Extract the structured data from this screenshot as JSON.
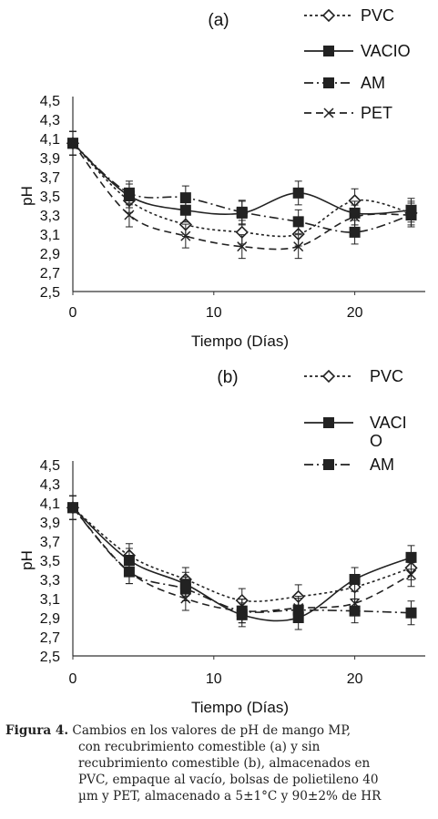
{
  "chart_data": [
    {
      "type": "line",
      "title": "(a)",
      "xlabel": "Tiempo (Días)",
      "ylabel": "pH",
      "xlim": [
        0,
        25
      ],
      "ylim": [
        2.5,
        4.5
      ],
      "xticks": [
        "0",
        "10",
        "20"
      ],
      "yticks": [
        "4,5",
        "4,3",
        "4,1",
        "3,9",
        "3,7",
        "3,5",
        "3,3",
        "3,1",
        "2,9",
        "2,7",
        "2,5"
      ],
      "x": [
        0,
        4,
        8,
        12,
        16,
        20,
        24
      ],
      "legend_position": "right",
      "grid": false,
      "series": [
        {
          "name": "PVC",
          "marker": "diamond",
          "dash": "3,3",
          "values": [
            4.05,
            3.45,
            3.2,
            3.12,
            3.1,
            3.45,
            3.32
          ]
        },
        {
          "name": "VACIO",
          "marker": "square",
          "dash": "",
          "values": [
            4.05,
            3.5,
            3.35,
            3.32,
            3.53,
            3.32,
            3.35
          ]
        },
        {
          "name": "AM",
          "marker": "square",
          "dash": "10,4,2,4",
          "values": [
            4.05,
            3.53,
            3.48,
            3.33,
            3.23,
            3.12,
            3.3
          ]
        },
        {
          "name": "PET",
          "marker": "x",
          "dash": "8,5",
          "values": [
            4.05,
            3.3,
            3.08,
            2.97,
            2.97,
            3.28,
            3.3
          ]
        }
      ]
    },
    {
      "type": "line",
      "title": "(b)",
      "xlabel": "Tiempo (Días)",
      "ylabel": "pH",
      "xlim": [
        0,
        25
      ],
      "ylim": [
        2.5,
        4.5
      ],
      "xticks": [
        "0",
        "10",
        "20"
      ],
      "yticks": [
        "4,5",
        "4,3",
        "4,1",
        "3,9",
        "3,7",
        "3,5",
        "3,3",
        "3,1",
        "2,9",
        "2,7",
        "2,5"
      ],
      "x": [
        0,
        4,
        8,
        12,
        16,
        20,
        24
      ],
      "legend_position": "right",
      "grid": false,
      "series": [
        {
          "name": "PVC",
          "marker": "diamond",
          "dash": "3,3",
          "values": [
            4.05,
            3.55,
            3.3,
            3.08,
            3.12,
            3.22,
            3.42
          ]
        },
        {
          "name": "VACI O",
          "marker": "square",
          "dash": "",
          "values": [
            4.05,
            3.5,
            3.25,
            2.93,
            2.9,
            3.3,
            3.53
          ]
        },
        {
          "name": "AM",
          "marker": "square",
          "dash": "10,4,2,4",
          "values": [
            4.05,
            3.38,
            3.2,
            2.97,
            2.98,
            2.97,
            2.95
          ]
        },
        {
          "name": "",
          "marker": "x",
          "dash": "8,5",
          "values": [
            4.05,
            3.38,
            3.1,
            2.97,
            3.0,
            3.05,
            3.35
          ]
        }
      ]
    }
  ],
  "caption": {
    "label": "Figura 4.",
    "lines": [
      " Cambios en los valores de pH de mango MP,",
      "con recubrimiento comestible (a) y sin",
      "recubrimiento comestible (b), almacenados en",
      "PVC, empaque al vacío, bolsas de polietileno 40",
      "µm y PET, almacenado a 5±1°C y 90±2% de HR"
    ]
  }
}
